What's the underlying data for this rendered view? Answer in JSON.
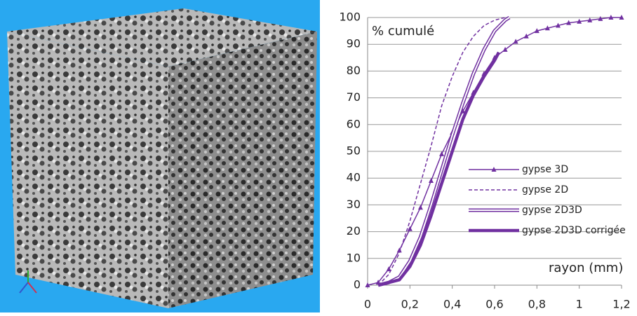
{
  "chart_data": {
    "type": "line",
    "annotations": [
      "% cumulé",
      "rayon (mm)"
    ],
    "xlim": [
      0,
      1.2
    ],
    "xticks": [
      0,
      {
        "value": 0.2,
        "label": "0,2"
      },
      {
        "value": 0.4,
        "label": "0,4"
      },
      {
        "value": 0.6,
        "label": "0,6"
      },
      {
        "value": 0.8,
        "label": "0,8"
      },
      1,
      {
        "value": 1.2,
        "label": "1,2"
      }
    ],
    "ylim": [
      0,
      100
    ],
    "yticks": [
      0,
      10,
      20,
      30,
      40,
      50,
      60,
      70,
      80,
      90,
      100
    ],
    "grid": true,
    "legend": "right",
    "series": [
      {
        "name": "gypse 3D",
        "color": "#7030a0",
        "style": "markers",
        "x": [
          0,
          0.05,
          0.1,
          0.15,
          0.2,
          0.25,
          0.3,
          0.35,
          0.4,
          0.45,
          0.5,
          0.55,
          0.6,
          0.65,
          0.7,
          0.75,
          0.8,
          0.85,
          0.9,
          0.95,
          1.0,
          1.05,
          1.1,
          1.15,
          1.2
        ],
        "values": [
          0,
          1,
          6,
          13,
          21,
          29,
          39,
          49,
          57,
          65,
          72,
          79,
          85,
          88,
          91,
          93,
          95,
          96,
          97,
          98,
          98.5,
          99,
          99.5,
          100,
          100
        ]
      },
      {
        "name": "gypse 2D",
        "color": "#7030a0",
        "style": "dashed",
        "x": [
          0.05,
          0.1,
          0.15,
          0.2,
          0.25,
          0.3,
          0.35,
          0.4,
          0.45,
          0.5,
          0.55,
          0.6,
          0.65
        ],
        "values": [
          0,
          4,
          12,
          24,
          38,
          52,
          67,
          78,
          87,
          93,
          97,
          99,
          100
        ]
      },
      {
        "name": "gypse 2D3D",
        "color": "#7030a0",
        "style": "double",
        "x": [
          0.05,
          0.1,
          0.15,
          0.2,
          0.25,
          0.3,
          0.35,
          0.4,
          0.45,
          0.5,
          0.55,
          0.6,
          0.65,
          0.67
        ],
        "values": [
          0,
          1,
          3,
          9,
          18,
          30,
          43,
          56,
          68,
          79,
          88,
          95,
          99,
          100
        ]
      },
      {
        "name": "gypse 2D3D corrigée",
        "color": "#7030a0",
        "style": "thick",
        "x": [
          0.05,
          0.1,
          0.15,
          0.2,
          0.25,
          0.3,
          0.35,
          0.4,
          0.45,
          0.5,
          0.55,
          0.6,
          0.62
        ],
        "values": [
          0,
          1,
          2,
          7,
          15,
          26,
          38,
          50,
          62,
          71,
          78,
          84,
          87
        ]
      }
    ]
  }
}
